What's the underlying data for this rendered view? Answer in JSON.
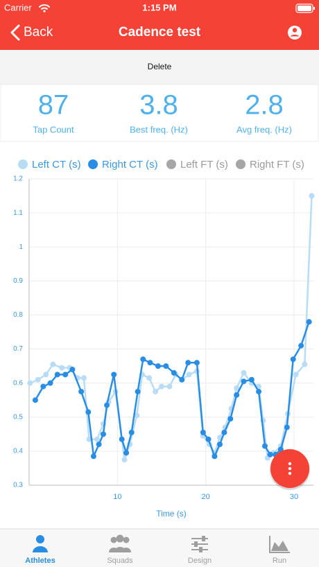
{
  "status_bar": {
    "carrier": "Carrier",
    "time": "1:15 PM"
  },
  "nav": {
    "back": "Back",
    "title": "Cadence test"
  },
  "actions": {
    "delete": "Delete"
  },
  "stats": [
    {
      "value": 87,
      "label": "Tap Count"
    },
    {
      "value": 3.8,
      "label": "Best freq. (Hz)"
    },
    {
      "value": 2.8,
      "label": "Avg freq. (Hz)"
    }
  ],
  "chart_data": {
    "type": "line",
    "x_label": "Time (s)",
    "xlim": [
      0,
      32.2
    ],
    "xticks": [
      10,
      20,
      30
    ],
    "ylim": [
      0.3,
      1.2
    ],
    "yticks": [
      0.3,
      0.4,
      0.5,
      0.6,
      0.7,
      0.8,
      0.9,
      1,
      1.1,
      1.2
    ],
    "grid": true,
    "series": [
      {
        "name": "Left CT (s)",
        "color": "#b9dcf6",
        "x": [
          0.1,
          1.0,
          1.9,
          2.7,
          3.7,
          4.6,
          5.5,
          6.2,
          6.8,
          7.7,
          8.4,
          9.0,
          9.8,
          10.8,
          11.4,
          12.2,
          12.8,
          13.6,
          14.3,
          15.0,
          15.9,
          16.6,
          17.3,
          18.1,
          19.0,
          19.7,
          20.4,
          21.0,
          21.6,
          22.2,
          22.9,
          23.5,
          24.3,
          25.2,
          26.0,
          26.5,
          27.0,
          27.7,
          28.5,
          29.3,
          30.2,
          31.2,
          32.0
        ],
        "values": [
          0.6,
          0.61,
          0.625,
          0.655,
          0.645,
          0.645,
          0.615,
          0.615,
          0.435,
          0.435,
          0.48,
          0.545,
          0.575,
          0.375,
          0.42,
          0.505,
          0.625,
          0.615,
          0.575,
          0.59,
          0.59,
          0.625,
          0.61,
          0.625,
          0.635,
          0.445,
          0.42,
          0.395,
          0.44,
          0.47,
          0.525,
          0.585,
          0.63,
          0.6,
          0.59,
          0.49,
          0.38,
          0.395,
          0.415,
          0.51,
          0.625,
          0.655,
          1.15
        ]
      },
      {
        "name": "Right CT (s)",
        "color": "#2a8de4",
        "x": [
          0.7,
          1.6,
          2.4,
          3.2,
          4.1,
          4.9,
          5.9,
          6.7,
          7.3,
          7.9,
          8.4,
          8.8,
          9.6,
          10.5,
          11.0,
          11.6,
          12.3,
          12.9,
          13.7,
          14.6,
          15.5,
          16.4,
          17.3,
          18.0,
          19.0,
          19.7,
          20.3,
          21.0,
          21.6,
          22.1,
          22.8,
          23.5,
          24.3,
          25.2,
          26.0,
          26.7,
          27.3,
          27.9,
          28.5,
          29.2,
          29.9,
          30.8,
          31.7
        ],
        "values": [
          0.55,
          0.59,
          0.6,
          0.625,
          0.625,
          0.64,
          0.575,
          0.515,
          0.385,
          0.42,
          0.45,
          0.535,
          0.625,
          0.435,
          0.395,
          0.455,
          0.575,
          0.67,
          0.66,
          0.65,
          0.65,
          0.63,
          0.61,
          0.66,
          0.66,
          0.455,
          0.435,
          0.385,
          0.42,
          0.455,
          0.495,
          0.565,
          0.605,
          0.61,
          0.575,
          0.415,
          0.39,
          0.39,
          0.405,
          0.47,
          0.67,
          0.71,
          0.78
        ]
      },
      {
        "name": "Left FT (s)",
        "color": "#a6a6a6",
        "x": [],
        "values": []
      },
      {
        "name": "Right FT (s)",
        "color": "#a6a6a6",
        "x": [],
        "values": []
      }
    ]
  },
  "tabs": [
    "Athletes",
    "Squads",
    "Design",
    "Run"
  ]
}
